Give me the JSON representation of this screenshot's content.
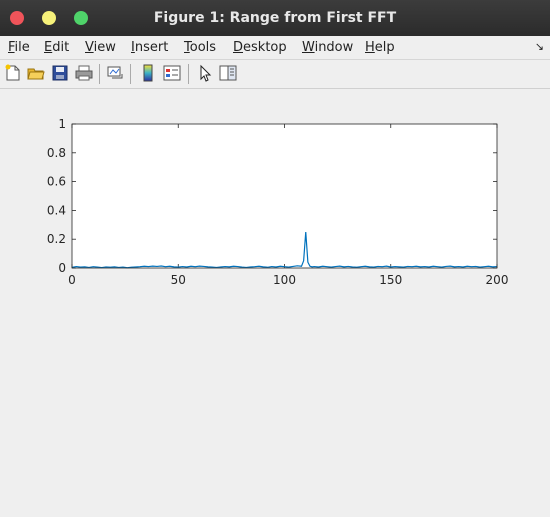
{
  "window": {
    "title": "Figure 1: Range from First FFT"
  },
  "menu": {
    "items": [
      {
        "accel": "F",
        "rest": "ile"
      },
      {
        "accel": "E",
        "rest": "dit"
      },
      {
        "accel": "V",
        "rest": "iew"
      },
      {
        "accel": "I",
        "rest": "nsert"
      },
      {
        "accel": "T",
        "rest": "ools"
      },
      {
        "accel": "D",
        "rest": "esktop"
      },
      {
        "accel": "W",
        "rest": "indow"
      },
      {
        "accel": "H",
        "rest": "elp"
      }
    ]
  },
  "toolbar": {
    "icons": [
      "new-figure-icon",
      "open-file-icon",
      "save-icon",
      "print-icon",
      "link-plot-icon",
      "insert-colorbar-icon",
      "insert-legend-icon",
      "edit-plot-icon",
      "property-editor-icon"
    ]
  },
  "chart_data": {
    "type": "line",
    "title": "",
    "xlabel": "",
    "ylabel": "",
    "xlim": [
      0,
      200
    ],
    "ylim": [
      0,
      1
    ],
    "x_ticks": [
      "0",
      "50",
      "100",
      "150",
      "200"
    ],
    "y_ticks": [
      "0",
      "0.2",
      "0.4",
      "0.6",
      "0.8",
      "1"
    ],
    "series_color": "#0072bd",
    "series": [
      {
        "name": "",
        "x": [
          0,
          2,
          4,
          6,
          8,
          10,
          12,
          14,
          16,
          18,
          20,
          22,
          24,
          26,
          28,
          30,
          32,
          34,
          36,
          38,
          40,
          42,
          44,
          46,
          48,
          50,
          52,
          54,
          56,
          58,
          60,
          62,
          64,
          66,
          68,
          70,
          72,
          74,
          76,
          78,
          80,
          82,
          84,
          86,
          88,
          90,
          92,
          94,
          96,
          98,
          100,
          102,
          104,
          106,
          108,
          109,
          110,
          111,
          112,
          113,
          114,
          116,
          118,
          120,
          122,
          124,
          126,
          128,
          130,
          132,
          134,
          136,
          138,
          140,
          142,
          144,
          146,
          148,
          150,
          152,
          154,
          156,
          158,
          160,
          162,
          164,
          166,
          168,
          170,
          172,
          174,
          176,
          178,
          180,
          182,
          184,
          186,
          188,
          190,
          192,
          194,
          196,
          198,
          200
        ],
        "y": [
          0.005,
          0.01,
          0.006,
          0.008,
          0.004,
          0.009,
          0.006,
          0.003,
          0.007,
          0.005,
          0.008,
          0.004,
          0.006,
          0.002,
          0.005,
          0.007,
          0.009,
          0.012,
          0.01,
          0.013,
          0.011,
          0.014,
          0.009,
          0.012,
          0.008,
          0.006,
          0.01,
          0.007,
          0.012,
          0.009,
          0.013,
          0.011,
          0.008,
          0.006,
          0.004,
          0.007,
          0.01,
          0.008,
          0.012,
          0.01,
          0.006,
          0.004,
          0.007,
          0.009,
          0.012,
          0.008,
          0.005,
          0.01,
          0.007,
          0.012,
          0.009,
          0.006,
          0.011,
          0.015,
          0.012,
          0.05,
          0.25,
          0.04,
          0.012,
          0.008,
          0.01,
          0.007,
          0.012,
          0.009,
          0.006,
          0.01,
          0.013,
          0.008,
          0.011,
          0.007,
          0.005,
          0.009,
          0.012,
          0.008,
          0.006,
          0.011,
          0.009,
          0.013,
          0.007,
          0.01,
          0.008,
          0.006,
          0.011,
          0.009,
          0.012,
          0.008,
          0.01,
          0.007,
          0.012,
          0.009,
          0.006,
          0.011,
          0.013,
          0.008,
          0.01,
          0.007,
          0.012,
          0.009,
          0.011,
          0.006,
          0.009,
          0.012,
          0.008,
          0.01
        ]
      }
    ]
  }
}
